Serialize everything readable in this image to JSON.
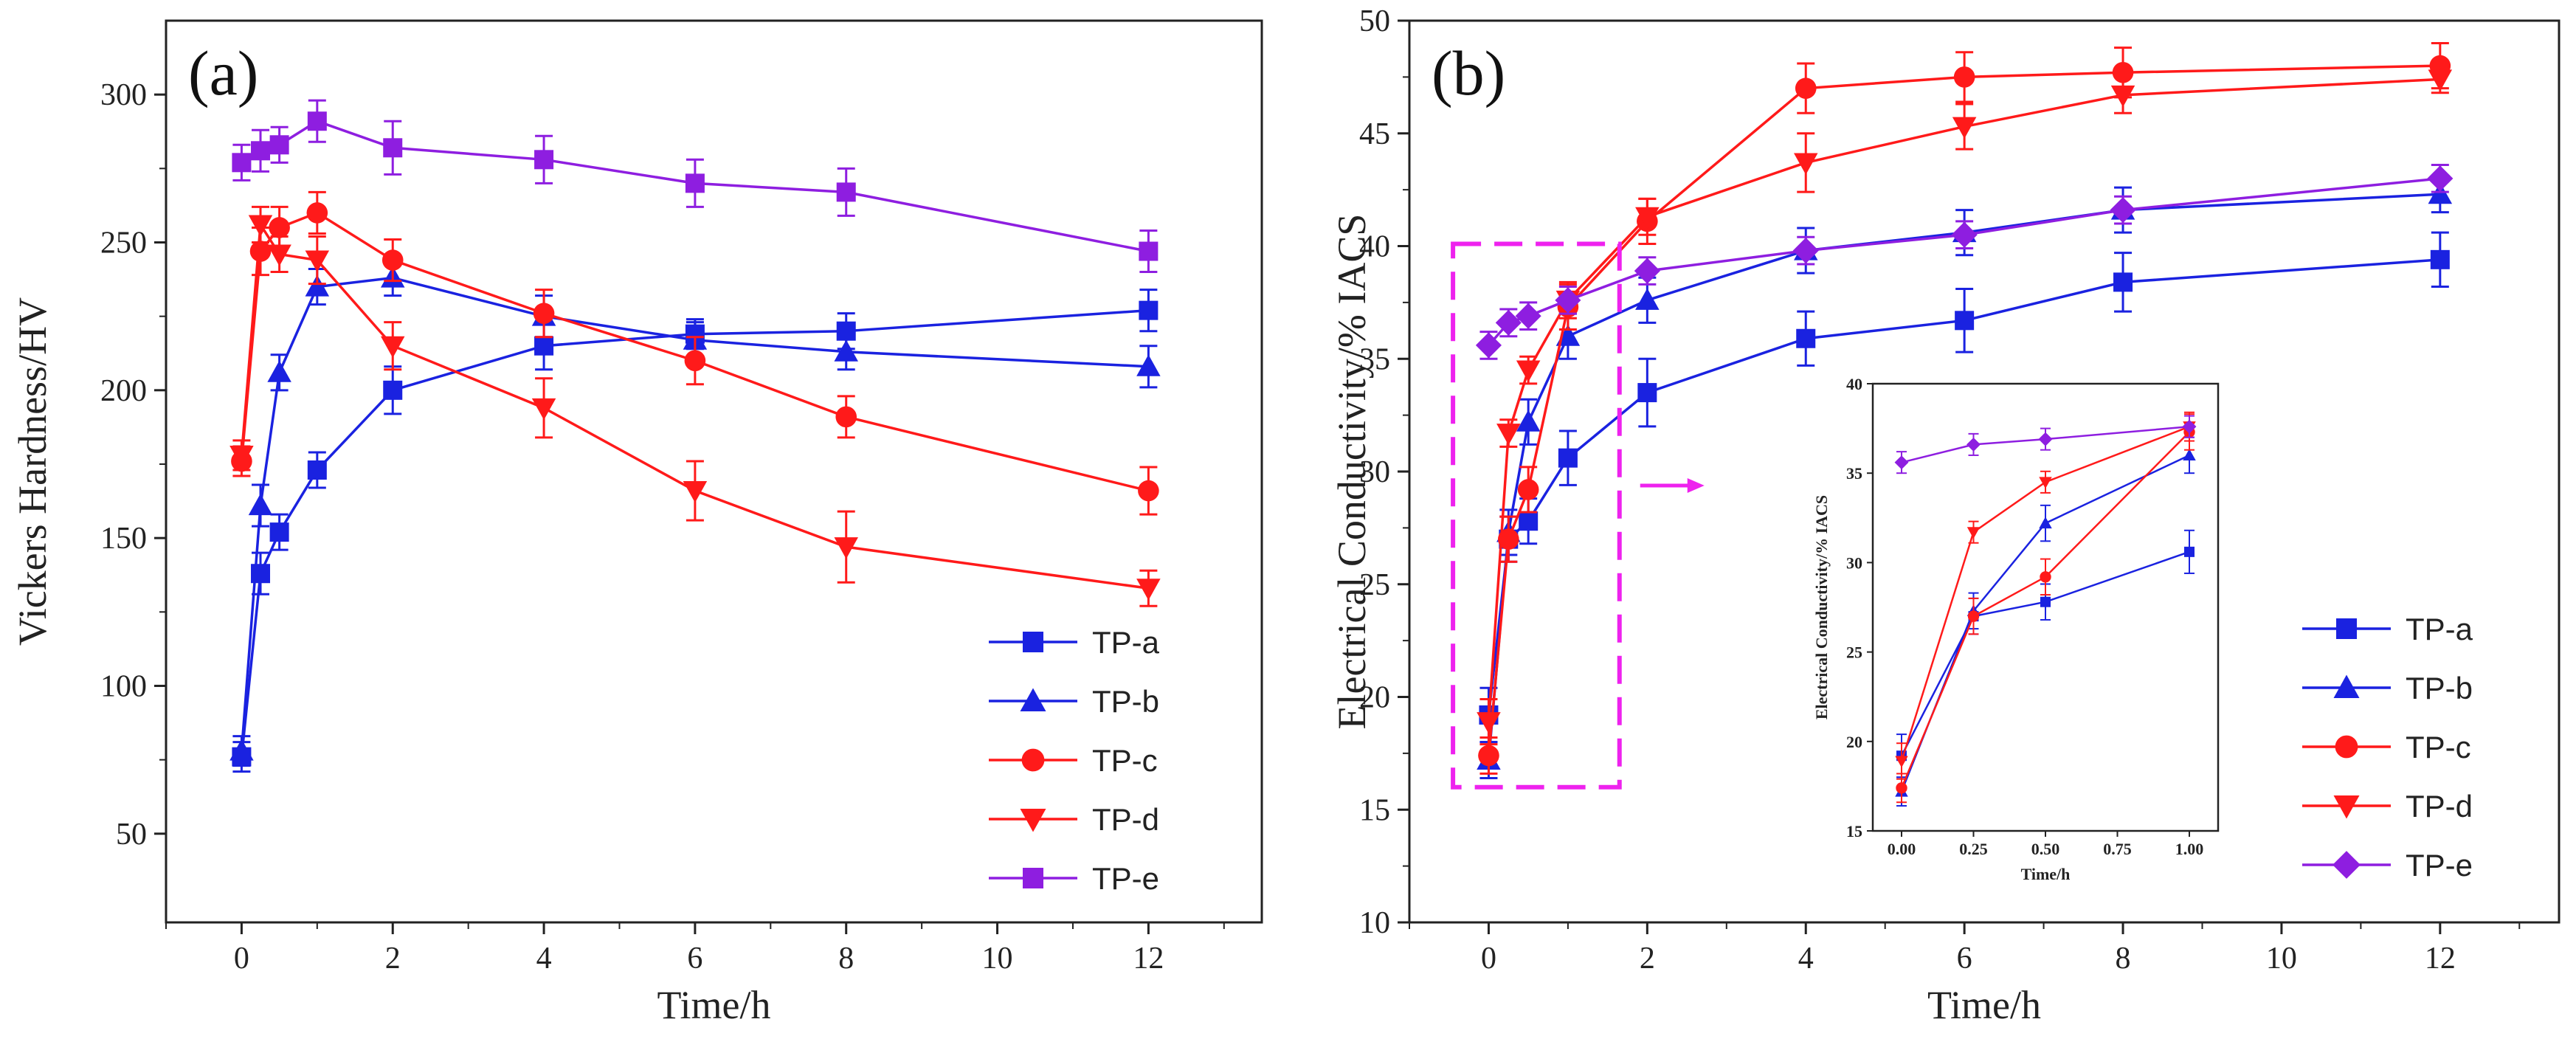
{
  "chart_data": [
    {
      "type": "line",
      "panel_label": "(a)",
      "xlabel": "Time/h",
      "ylabel": "Vickers Hardness/HV",
      "xlim": [
        -1,
        13.5
      ],
      "ylim": [
        20,
        325
      ],
      "xticks": [
        0,
        2,
        4,
        6,
        8,
        10,
        12
      ],
      "yticks": [
        50,
        100,
        150,
        200,
        250,
        300
      ],
      "legend_position": "bottom-right",
      "series": [
        {
          "name": "TP-a",
          "color": "#1a22e0",
          "marker": "square",
          "x": [
            0,
            0.25,
            0.5,
            1,
            2,
            4,
            6,
            8,
            12
          ],
          "y": [
            76,
            138,
            152,
            173,
            200,
            215,
            219,
            220,
            227
          ],
          "err": [
            5,
            7,
            6,
            6,
            8,
            8,
            5,
            6,
            7
          ]
        },
        {
          "name": "TP-b",
          "color": "#1a22e0",
          "marker": "triangle-up",
          "x": [
            0,
            0.25,
            0.5,
            1,
            2,
            4,
            6,
            8,
            12
          ],
          "y": [
            78,
            161,
            206,
            235,
            238,
            225,
            217,
            213,
            208
          ],
          "err": [
            5,
            7,
            6,
            6,
            6,
            7,
            6,
            6,
            7
          ]
        },
        {
          "name": "TP-c",
          "color": "#ff1a1a",
          "marker": "circle",
          "x": [
            0,
            0.25,
            0.5,
            1,
            2,
            4,
            6,
            8,
            12
          ],
          "y": [
            176,
            247,
            255,
            260,
            244,
            226,
            210,
            191,
            166
          ],
          "err": [
            5,
            8,
            7,
            7,
            7,
            8,
            8,
            7,
            8
          ]
        },
        {
          "name": "TP-d",
          "color": "#ff1a1a",
          "marker": "triangle-down",
          "x": [
            0,
            0.25,
            0.5,
            1,
            2,
            4,
            6,
            8,
            12
          ],
          "y": [
            178,
            256,
            246,
            244,
            215,
            194,
            166,
            147,
            133
          ],
          "err": [
            5,
            6,
            6,
            8,
            8,
            10,
            10,
            12,
            6
          ]
        },
        {
          "name": "TP-e",
          "color": "#8e1ee0",
          "marker": "square",
          "x": [
            0,
            0.25,
            0.5,
            1,
            2,
            4,
            6,
            8,
            12
          ],
          "y": [
            277,
            281,
            283,
            291,
            282,
            278,
            270,
            267,
            247
          ],
          "err": [
            6,
            7,
            6,
            7,
            9,
            8,
            8,
            8,
            7
          ]
        }
      ]
    },
    {
      "type": "line",
      "panel_label": "(b)",
      "xlabel": "Time/h",
      "ylabel": "Electrical Conductivity/% IACS",
      "xlim": [
        -1,
        13.5
      ],
      "ylim": [
        10,
        50
      ],
      "xticks": [
        0,
        2,
        4,
        6,
        8,
        10,
        12
      ],
      "yticks": [
        10,
        15,
        20,
        25,
        30,
        35,
        40,
        45,
        50
      ],
      "legend_position": "bottom-right",
      "series": [
        {
          "name": "TP-a",
          "color": "#1a22e0",
          "marker": "square",
          "x": [
            0,
            0.25,
            0.5,
            1,
            2,
            4,
            6,
            8,
            12
          ],
          "y": [
            19.2,
            27.0,
            27.8,
            30.6,
            33.5,
            35.9,
            36.7,
            38.4,
            39.4
          ],
          "err": [
            1.2,
            1.0,
            1.0,
            1.2,
            1.5,
            1.2,
            1.4,
            1.3,
            1.2
          ]
        },
        {
          "name": "TP-b",
          "color": "#1a22e0",
          "marker": "triangle-up",
          "x": [
            0,
            0.25,
            0.5,
            1,
            2,
            4,
            6,
            8,
            12
          ],
          "y": [
            17.2,
            27.3,
            32.2,
            36.0,
            37.6,
            39.8,
            40.6,
            41.6,
            42.3
          ],
          "err": [
            0.8,
            1.0,
            1.0,
            1.0,
            1.0,
            1.0,
            1.0,
            1.0,
            0.8
          ]
        },
        {
          "name": "TP-c",
          "color": "#ff1a1a",
          "marker": "circle",
          "x": [
            0,
            0.25,
            0.5,
            1,
            2,
            4,
            6,
            8,
            12
          ],
          "y": [
            17.4,
            27.0,
            29.2,
            37.3,
            41.1,
            47.0,
            47.5,
            47.7,
            48.0
          ],
          "err": [
            0.8,
            1.0,
            1.0,
            1.0,
            1.0,
            1.1,
            1.1,
            1.1,
            1.0
          ]
        },
        {
          "name": "TP-d",
          "color": "#ff1a1a",
          "marker": "triangle-down",
          "x": [
            0,
            0.25,
            0.5,
            1,
            2,
            4,
            6,
            8,
            12
          ],
          "y": [
            18.9,
            31.7,
            34.5,
            37.6,
            41.3,
            43.7,
            45.3,
            46.7,
            47.4
          ],
          "err": [
            1.0,
            0.6,
            0.6,
            0.8,
            0.8,
            1.3,
            1.0,
            0.8,
            0.6
          ]
        },
        {
          "name": "TP-e",
          "color": "#8e1ee0",
          "marker": "diamond",
          "x": [
            0,
            0.25,
            0.5,
            1,
            2,
            4,
            6,
            8,
            12
          ],
          "y": [
            35.6,
            36.6,
            36.9,
            37.6,
            38.9,
            39.8,
            40.5,
            41.6,
            43.0
          ],
          "err": [
            0.6,
            0.6,
            0.6,
            0.6,
            0.6,
            0.6,
            0.6,
            0.6,
            0.6
          ]
        }
      ],
      "inset": {
        "xlabel": "Time/h",
        "ylabel": "Electrical Conductivity/% IACS",
        "xlim": [
          -0.1,
          1.1
        ],
        "ylim": [
          15,
          40
        ],
        "xticks": [
          0,
          0.25,
          0.5,
          0.75,
          1
        ],
        "xtick_labels": [
          "0.00",
          "0.25",
          "0.50",
          "0.75",
          "1.00"
        ],
        "yticks": [
          15,
          20,
          25,
          30,
          35,
          40
        ],
        "range_x": [
          0,
          1
        ]
      }
    }
  ]
}
